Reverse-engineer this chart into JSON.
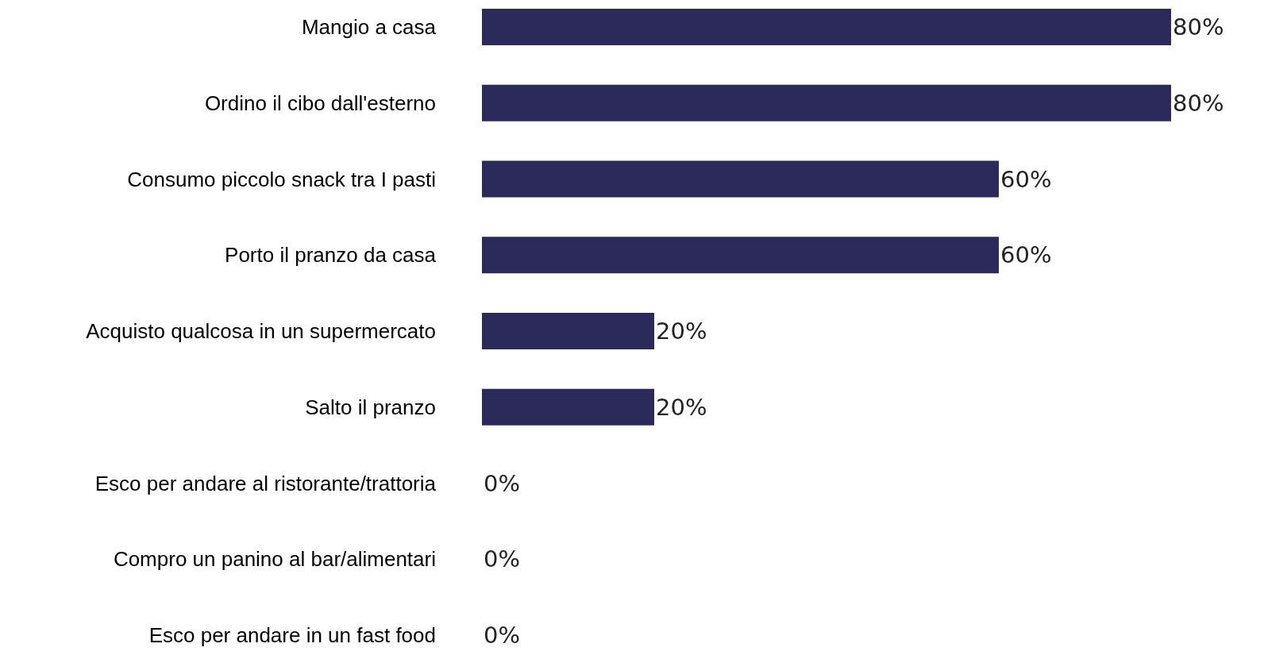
{
  "chart_data": {
    "type": "bar",
    "orientation": "horizontal",
    "categories": [
      "Mangio a casa",
      "Ordino il cibo dall'esterno",
      "Consumo piccolo snack tra I pasti",
      "Porto il pranzo da casa",
      "Acquisto qualcosa in un supermercato",
      "Salto il pranzo",
      "Esco per andare al ristorante/trattoria",
      "Compro un panino al bar/alimentari",
      "Esco per andare in un fast food"
    ],
    "values": [
      80,
      80,
      60,
      60,
      20,
      20,
      0,
      0,
      0
    ],
    "value_labels": [
      "80%",
      "80%",
      "60%",
      "60%",
      "20%",
      "20%",
      "0%",
      "0%",
      "0%"
    ],
    "color": "#2b2a5a"
  }
}
